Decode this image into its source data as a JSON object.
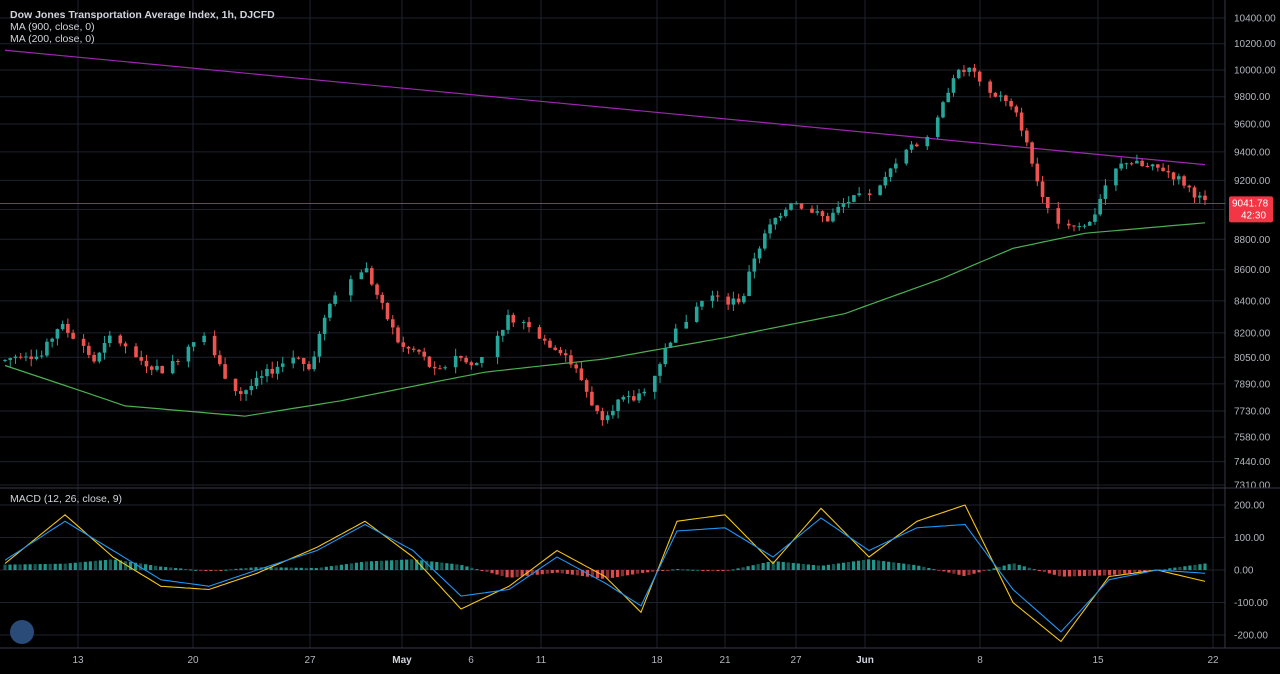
{
  "legend": {
    "title": "Dow Jones Transportation Average Index, 1h, DJCFD",
    "ma900": "MA (900, close, 0)",
    "ma200": "MA (200, close, 0)",
    "macd": "MACD (12, 26, close, 9)"
  },
  "price_label": {
    "value": "9041.78",
    "timer": "42:30",
    "color": "#f23645"
  },
  "colors": {
    "up": "#26a69a",
    "down": "#ef5350",
    "ma900": "#9c27b0",
    "ma200": "#4caf50",
    "macd": "#2196f3",
    "signal": "#f5c518",
    "hist_up": "#26a69a",
    "hist_down": "#ef5350"
  },
  "chart_data": [
    {
      "type": "candlestick",
      "title": "Dow Jones Transportation Average Index, 1h, DJCFD",
      "y_scale": "log",
      "y_ticks": [
        "10400.00",
        "10200.00",
        "10000.00",
        "9800.00",
        "9600.00",
        "9400.00",
        "9200.00",
        "9000.00",
        "8800.00",
        "8600.00",
        "8400.00",
        "8200.00",
        "8050.00",
        "7890.00",
        "7730.00",
        "7580.00",
        "7440.00",
        "7310.00"
      ],
      "x_ticks": [
        {
          "label": "13",
          "bold": false
        },
        {
          "label": "20",
          "bold": false
        },
        {
          "label": "27",
          "bold": false
        },
        {
          "label": "May",
          "bold": true
        },
        {
          "label": "6",
          "bold": false
        },
        {
          "label": "11",
          "bold": false
        },
        {
          "label": "18",
          "bold": false
        },
        {
          "label": "21",
          "bold": false
        },
        {
          "label": "27",
          "bold": false
        },
        {
          "label": "Jun",
          "bold": true
        },
        {
          "label": "8",
          "bold": false
        },
        {
          "label": "15",
          "bold": false
        },
        {
          "label": "22",
          "bold": false
        }
      ],
      "ylim": [
        7310,
        10400
      ],
      "close_path": [
        [
          0,
          8030
        ],
        [
          0.015,
          8080
        ],
        [
          0.03,
          8050
        ],
        [
          0.045,
          8250
        ],
        [
          0.06,
          8160
        ],
        [
          0.075,
          8020
        ],
        [
          0.09,
          8200
        ],
        [
          0.105,
          8060
        ],
        [
          0.12,
          8010
        ],
        [
          0.135,
          7960
        ],
        [
          0.15,
          8110
        ],
        [
          0.165,
          8220
        ],
        [
          0.18,
          7980
        ],
        [
          0.195,
          7830
        ],
        [
          0.21,
          7900
        ],
        [
          0.225,
          7990
        ],
        [
          0.24,
          8050
        ],
        [
          0.255,
          8000
        ],
        [
          0.27,
          8400
        ],
        [
          0.285,
          8520
        ],
        [
          0.3,
          8620
        ],
        [
          0.315,
          8350
        ],
        [
          0.33,
          8110
        ],
        [
          0.345,
          8080
        ],
        [
          0.36,
          7940
        ],
        [
          0.375,
          8070
        ],
        [
          0.39,
          7990
        ],
        [
          0.405,
          8120
        ],
        [
          0.42,
          8300
        ],
        [
          0.435,
          8270
        ],
        [
          0.45,
          8150
        ],
        [
          0.465,
          8090
        ],
        [
          0.48,
          7920
        ],
        [
          0.495,
          7690
        ],
        [
          0.51,
          7780
        ],
        [
          0.525,
          7800
        ],
        [
          0.54,
          7930
        ],
        [
          0.555,
          8170
        ],
        [
          0.57,
          8300
        ],
        [
          0.585,
          8440
        ],
        [
          0.6,
          8380
        ],
        [
          0.615,
          8420
        ],
        [
          0.625,
          8700
        ],
        [
          0.64,
          8920
        ],
        [
          0.655,
          9060
        ],
        [
          0.67,
          9000
        ],
        [
          0.685,
          8930
        ],
        [
          0.7,
          9050
        ],
        [
          0.715,
          9090
        ],
        [
          0.73,
          9150
        ],
        [
          0.745,
          9380
        ],
        [
          0.76,
          9450
        ],
        [
          0.775,
          9560
        ],
        [
          0.79,
          9960
        ],
        [
          0.805,
          10010
        ],
        [
          0.815,
          9840
        ],
        [
          0.83,
          9800
        ],
        [
          0.845,
          9640
        ],
        [
          0.86,
          9200
        ],
        [
          0.875,
          8920
        ],
        [
          0.89,
          8900
        ],
        [
          0.905,
          8910
        ],
        [
          0.92,
          9230
        ],
        [
          0.935,
          9340
        ],
        [
          0.95,
          9290
        ],
        [
          0.965,
          9280
        ],
        [
          0.98,
          9200
        ],
        [
          1,
          9041
        ]
      ],
      "ma900": {
        "start": 10150,
        "end": 9310
      },
      "ma200_path": [
        [
          0,
          8000
        ],
        [
          0.1,
          7760
        ],
        [
          0.2,
          7700
        ],
        [
          0.28,
          7790
        ],
        [
          0.35,
          7890
        ],
        [
          0.4,
          7960
        ],
        [
          0.5,
          8040
        ],
        [
          0.6,
          8170
        ],
        [
          0.7,
          8320
        ],
        [
          0.78,
          8540
        ],
        [
          0.84,
          8740
        ],
        [
          0.9,
          8840
        ],
        [
          1,
          8910
        ]
      ],
      "series": [
        {
          "name": "MA (900, close, 0)"
        },
        {
          "name": "MA (200, close, 0)"
        }
      ]
    },
    {
      "type": "macd",
      "title": "MACD (12, 26, close, 9)",
      "y_ticks": [
        "200.00",
        "100.00",
        "0.00",
        "-100.00",
        "-200.00"
      ],
      "ylim": [
        -240,
        240
      ],
      "macd_path": [
        [
          0,
          30
        ],
        [
          0.05,
          150
        ],
        [
          0.09,
          60
        ],
        [
          0.13,
          -30
        ],
        [
          0.17,
          -50
        ],
        [
          0.21,
          0
        ],
        [
          0.26,
          60
        ],
        [
          0.3,
          140
        ],
        [
          0.34,
          60
        ],
        [
          0.38,
          -80
        ],
        [
          0.42,
          -60
        ],
        [
          0.46,
          40
        ],
        [
          0.5,
          -40
        ],
        [
          0.53,
          -110
        ],
        [
          0.56,
          120
        ],
        [
          0.6,
          130
        ],
        [
          0.64,
          40
        ],
        [
          0.68,
          160
        ],
        [
          0.72,
          60
        ],
        [
          0.76,
          130
        ],
        [
          0.8,
          140
        ],
        [
          0.84,
          -60
        ],
        [
          0.88,
          -190
        ],
        [
          0.92,
          -30
        ],
        [
          0.96,
          0
        ],
        [
          1,
          -10
        ]
      ],
      "signal_path": [
        [
          0,
          20
        ],
        [
          0.05,
          170
        ],
        [
          0.09,
          40
        ],
        [
          0.13,
          -50
        ],
        [
          0.17,
          -60
        ],
        [
          0.21,
          -10
        ],
        [
          0.26,
          70
        ],
        [
          0.3,
          150
        ],
        [
          0.34,
          40
        ],
        [
          0.38,
          -120
        ],
        [
          0.42,
          -50
        ],
        [
          0.46,
          60
        ],
        [
          0.5,
          -20
        ],
        [
          0.53,
          -130
        ],
        [
          0.56,
          150
        ],
        [
          0.6,
          170
        ],
        [
          0.64,
          20
        ],
        [
          0.68,
          190
        ],
        [
          0.72,
          40
        ],
        [
          0.76,
          150
        ],
        [
          0.8,
          200
        ],
        [
          0.84,
          -100
        ],
        [
          0.88,
          -220
        ],
        [
          0.92,
          -20
        ],
        [
          0.96,
          0
        ],
        [
          1,
          -35
        ]
      ]
    }
  ]
}
